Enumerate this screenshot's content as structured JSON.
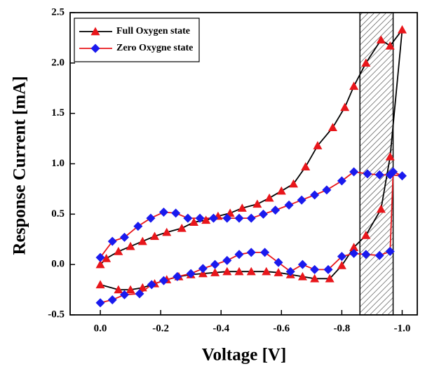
{
  "chart_data": {
    "type": "line",
    "x_label": "Voltage [V]",
    "y_label": "Response Current [mA]",
    "xlim": [
      0.1,
      -1.05
    ],
    "ylim": [
      -0.5,
      2.5
    ],
    "xticks": [
      {
        "value": 0,
        "label": "0.0"
      },
      -0.2,
      -0.4,
      -0.6,
      -0.8,
      {
        "value": -1,
        "label": "-1.0"
      }
    ],
    "yticks": [
      -0.5,
      {
        "value": 0,
        "label": "0.0"
      },
      0.5,
      {
        "value": 1,
        "label": "1.0"
      },
      1.5,
      {
        "value": 2,
        "label": "2.0"
      },
      2.5
    ],
    "shaded_region": [
      -0.86,
      -0.97
    ],
    "legend": "upper left",
    "series": [
      {
        "name": "Full Oxygen state",
        "color": "#000000",
        "marker": "triangle",
        "marker_color": "#e8161b",
        "x": [
          0,
          -0.02,
          -0.06,
          -0.1,
          -0.14,
          -0.18,
          -0.22,
          -0.27,
          -0.31,
          -0.35,
          -0.39,
          -0.43,
          -0.47,
          -0.52,
          -0.56,
          -0.6,
          -0.64,
          -0.68,
          -0.72,
          -0.77,
          -0.81,
          -0.84,
          -0.88,
          -0.93,
          -0.96,
          -1.0,
          -0.96,
          -0.93,
          -0.88,
          -0.84,
          -0.8,
          -0.76,
          -0.71,
          -0.67,
          -0.63,
          -0.59,
          -0.55,
          -0.5,
          -0.46,
          -0.42,
          -0.38,
          -0.34,
          -0.3,
          -0.26,
          -0.22,
          -0.18,
          -0.14,
          -0.1,
          -0.06,
          0
        ],
        "values": [
          0.0,
          0.06,
          0.13,
          0.18,
          0.23,
          0.28,
          0.32,
          0.36,
          0.42,
          0.44,
          0.48,
          0.51,
          0.56,
          0.6,
          0.66,
          0.73,
          0.8,
          0.97,
          1.18,
          1.36,
          1.56,
          1.77,
          2.0,
          2.23,
          2.17,
          2.33,
          1.07,
          0.55,
          0.29,
          0.17,
          -0.01,
          -0.14,
          -0.14,
          -0.12,
          -0.1,
          -0.08,
          -0.07,
          -0.07,
          -0.07,
          -0.07,
          -0.08,
          -0.09,
          -0.1,
          -0.12,
          -0.15,
          -0.19,
          -0.23,
          -0.25,
          -0.25,
          -0.2
        ]
      },
      {
        "name": "Zero Oxygne state",
        "color": "#e8161b",
        "marker": "diamond",
        "marker_color": "#1a1aee",
        "x": [
          0,
          -0.04,
          -0.08,
          -0.125,
          -0.167,
          -0.21,
          -0.25,
          -0.29,
          -0.33,
          -0.375,
          -0.42,
          -0.46,
          -0.5,
          -0.54,
          -0.58,
          -0.625,
          -0.667,
          -0.71,
          -0.75,
          -0.8,
          -0.84,
          -0.885,
          -0.925,
          -0.96,
          -1.0,
          -0.97,
          -0.96,
          -0.925,
          -0.88,
          -0.84,
          -0.8,
          -0.755,
          -0.71,
          -0.67,
          -0.63,
          -0.59,
          -0.545,
          -0.5,
          -0.46,
          -0.42,
          -0.38,
          -0.34,
          -0.3,
          -0.255,
          -0.21,
          -0.17,
          -0.13,
          -0.08,
          -0.04,
          0
        ],
        "values": [
          0.07,
          0.23,
          0.27,
          0.38,
          0.46,
          0.52,
          0.51,
          0.46,
          0.46,
          0.46,
          0.46,
          0.46,
          0.46,
          0.5,
          0.54,
          0.59,
          0.64,
          0.69,
          0.74,
          0.83,
          0.92,
          0.9,
          0.89,
          0.89,
          0.88,
          0.92,
          0.13,
          0.09,
          0.1,
          0.11,
          0.08,
          -0.05,
          -0.05,
          0.0,
          -0.07,
          0.02,
          0.12,
          0.12,
          0.1,
          0.04,
          0.0,
          -0.04,
          -0.09,
          -0.12,
          -0.16,
          -0.2,
          -0.29,
          -0.3,
          -0.35,
          -0.38
        ]
      }
    ]
  }
}
